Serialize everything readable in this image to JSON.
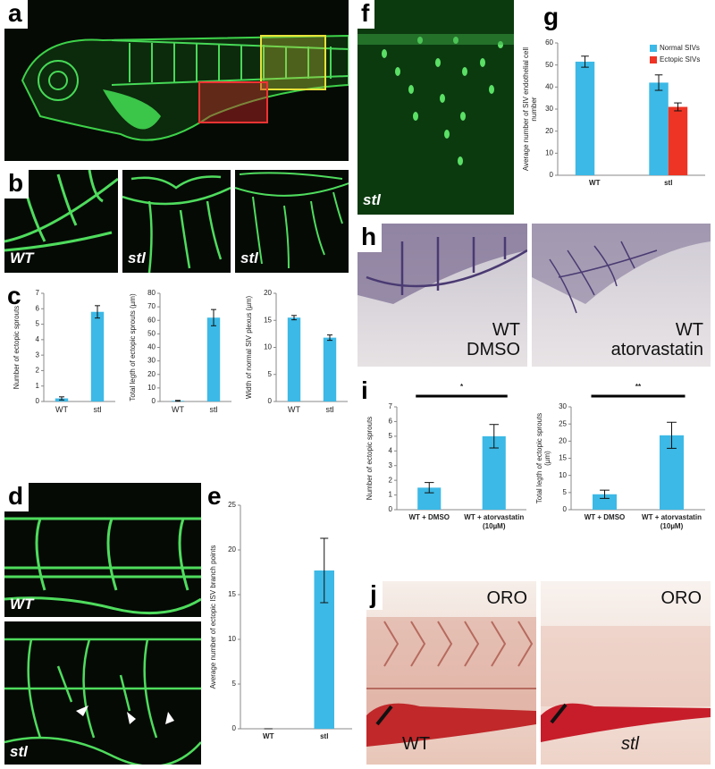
{
  "figure": {
    "panel_letters": [
      "a",
      "b",
      "c",
      "d",
      "e",
      "f",
      "g",
      "h",
      "i",
      "j"
    ],
    "image_labels": {
      "b": [
        "WT",
        "stl",
        "stl"
      ],
      "d": [
        "WT",
        "stl"
      ],
      "f": [
        "stl"
      ],
      "h": [
        [
          "WT",
          "DMSO"
        ],
        [
          "WT",
          "atorvastatin"
        ]
      ],
      "j": [
        [
          "ORO",
          "WT"
        ],
        [
          "ORO",
          "stl"
        ]
      ]
    }
  },
  "chart_data": [
    {
      "type": "bar",
      "y_label": "Number of ectopic sprouts",
      "categories": [
        "WT",
        "stl"
      ],
      "values": [
        0.2,
        5.8
      ],
      "errors": [
        0.1,
        0.4
      ],
      "color": "#3cb9e6",
      "ylim": [
        0,
        7
      ],
      "yticks": [
        0,
        1,
        2,
        3,
        4,
        5,
        6,
        7
      ]
    },
    {
      "type": "bar",
      "y_label": "Total legth of ectopic sprouts (µm)",
      "categories": [
        "WT",
        "stl"
      ],
      "values": [
        0.5,
        62
      ],
      "errors": [
        0.3,
        6
      ],
      "color": "#3cb9e6",
      "ylim": [
        0,
        80
      ],
      "yticks": [
        0,
        10,
        20,
        30,
        40,
        50,
        60,
        70,
        80
      ]
    },
    {
      "type": "bar",
      "y_label": "Width of normal SIV plexus (µm)",
      "categories": [
        "WT",
        "stl"
      ],
      "values": [
        15.5,
        11.8
      ],
      "errors": [
        0.4,
        0.5
      ],
      "color": "#3cb9e6",
      "ylim": [
        0,
        20
      ],
      "yticks": [
        0,
        5,
        10,
        15,
        20
      ]
    },
    {
      "type": "bar",
      "y_label": "Average number of ectopic ISV branch points",
      "categories": [
        "WT",
        "stl"
      ],
      "values": [
        0,
        17.7
      ],
      "errors": [
        0,
        3.6
      ],
      "color": "#3cb9e6",
      "ylim": [
        0,
        25
      ],
      "yticks": [
        0,
        5,
        10,
        15,
        20,
        25
      ]
    },
    {
      "type": "bar",
      "y_label": "Average number of SIV endothelial cell number",
      "categories": [
        "WT",
        "stl"
      ],
      "series": [
        {
          "name": "Normal SIVs",
          "color": "#3cb9e6",
          "values": [
            51.5,
            42
          ],
          "errors": [
            2.5,
            3.5
          ]
        },
        {
          "name": "Ectopic SIVs",
          "color": "#ee3424",
          "values": [
            null,
            31
          ],
          "errors": [
            null,
            1.8
          ]
        }
      ],
      "ylim": [
        0,
        60
      ],
      "yticks": [
        0,
        10,
        20,
        30,
        40,
        50,
        60
      ],
      "legend": "upper right"
    },
    {
      "type": "bar",
      "y_label": "Number of ectopic sprouts",
      "categories": [
        "WT + DMSO",
        "WT + atorvastatin (10µM)"
      ],
      "values": [
        1.5,
        5.0
      ],
      "errors": [
        0.35,
        0.8
      ],
      "color": "#3cb9e6",
      "ylim": [
        0,
        7
      ],
      "yticks": [
        0,
        1,
        2,
        3,
        4,
        5,
        6,
        7
      ],
      "annotation": "*"
    },
    {
      "type": "bar",
      "y_label": "Total legth of ectopic sprouts (µm)",
      "categories": [
        "WT + DMSO",
        "WT + atorvastatin (10µM)"
      ],
      "values": [
        4.5,
        21.7
      ],
      "errors": [
        1.2,
        3.8
      ],
      "color": "#3cb9e6",
      "ylim": [
        0,
        30
      ],
      "yticks": [
        0,
        5,
        10,
        15,
        20,
        25,
        30
      ],
      "annotation": "**"
    }
  ]
}
